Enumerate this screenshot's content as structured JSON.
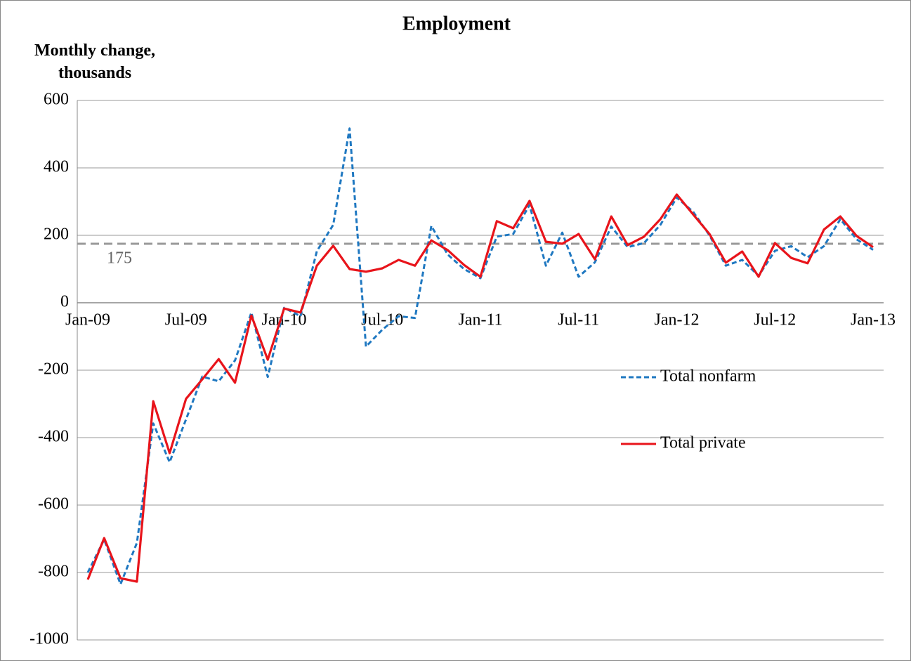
{
  "chart_data": {
    "type": "line",
    "title": "Employment",
    "y_label": "Monthly change, thousands",
    "categories": [
      "Jan-09",
      null,
      null,
      null,
      null,
      null,
      "Jul-09",
      null,
      null,
      null,
      null,
      null,
      "Jan-10",
      null,
      null,
      null,
      null,
      null,
      "Jul-10",
      null,
      null,
      null,
      null,
      null,
      "Jan-11",
      null,
      null,
      null,
      null,
      null,
      "Jul-11",
      null,
      null,
      null,
      null,
      null,
      "Jan-12",
      null,
      null,
      null,
      null,
      null,
      "Jul-12",
      null,
      null,
      null,
      null,
      null,
      "Jan-13"
    ],
    "series": [
      {
        "name": "Total nonfarm",
        "color": "#1f78c1",
        "dash": true,
        "values": [
          -800,
          -702,
          -835,
          -712,
          -358,
          -473,
          -346,
          -219,
          -233,
          -171,
          -29,
          -220,
          -15,
          -40,
          153,
          231,
          517,
          -130,
          -80,
          -40,
          -45,
          228,
          143,
          100,
          73,
          196,
          204,
          290,
          110,
          208,
          77,
          120,
          226,
          165,
          177,
          231,
          312,
          270,
          200,
          110,
          127,
          80,
          154,
          168,
          135,
          168,
          248,
          188,
          157
        ]
      },
      {
        "name": "Total private",
        "color": "#e8141b",
        "dash": false,
        "values": [
          -821,
          -698,
          -817,
          -827,
          -292,
          -446,
          -285,
          -227,
          -167,
          -237,
          -38,
          -169,
          -17,
          -29,
          110,
          169,
          100,
          92,
          102,
          127,
          110,
          185,
          156,
          112,
          77,
          242,
          221,
          302,
          181,
          175,
          204,
          129,
          256,
          171,
          196,
          248,
          321,
          262,
          204,
          119,
          152,
          77,
          177,
          133,
          117,
          217,
          256,
          198,
          165
        ]
      }
    ],
    "reference_line": 175,
    "reference_color": "#999999",
    "ylim": [
      -1000,
      600
    ],
    "yticks": [
      -1000,
      -800,
      -600,
      -400,
      -200,
      0,
      200,
      400,
      600
    ],
    "grid": true,
    "legend": "right"
  }
}
